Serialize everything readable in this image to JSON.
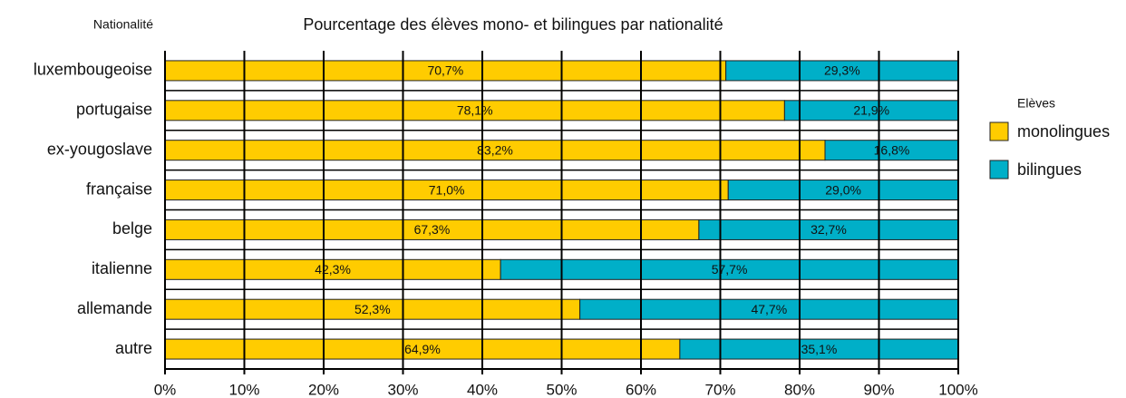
{
  "chart_data": {
    "type": "stacked_bar_horizontal",
    "title": "Pourcentage des élèves mono- et bilingues par nationalité",
    "y_axis_label": "Nationalité",
    "legend_title": "Elèves",
    "legend_position": "right",
    "categories": [
      "luxembougeoise",
      "portugaise",
      "ex-yougoslave",
      "française",
      "belge",
      "italienne",
      "allemande",
      "autre"
    ],
    "series": [
      {
        "name": "monolingues",
        "color": "#ffcc00",
        "values": [
          70.7,
          78.1,
          83.2,
          71.0,
          67.3,
          42.3,
          52.3,
          64.9
        ],
        "value_labels": [
          "70,7%",
          "78,1%",
          "83,2%",
          "71,0%",
          "67,3%",
          "42,3%",
          "52,3%",
          "64,9%"
        ]
      },
      {
        "name": "bilingues",
        "color": "#00afc8",
        "values": [
          29.3,
          21.9,
          16.8,
          29.0,
          32.7,
          57.7,
          47.7,
          35.1
        ],
        "value_labels": [
          "29,3%",
          "21,9%",
          "16,8%",
          "29,0%",
          "32,7%",
          "57,7%",
          "47,7%",
          "35,1%"
        ]
      }
    ],
    "xlim": [
      0,
      100
    ],
    "xticks": [
      {
        "value": 0,
        "label": "0%"
      },
      {
        "value": 10,
        "label": "10%"
      },
      {
        "value": 20,
        "label": "20%"
      },
      {
        "value": 30,
        "label": "30%"
      },
      {
        "value": 40,
        "label": "40%"
      },
      {
        "value": 50,
        "label": "50%"
      },
      {
        "value": 60,
        "label": "60%"
      },
      {
        "value": 70,
        "label": "70%"
      },
      {
        "value": 80,
        "label": "80%"
      },
      {
        "value": 90,
        "label": "90%"
      },
      {
        "value": 100,
        "label": "100%"
      }
    ],
    "grid": true
  }
}
